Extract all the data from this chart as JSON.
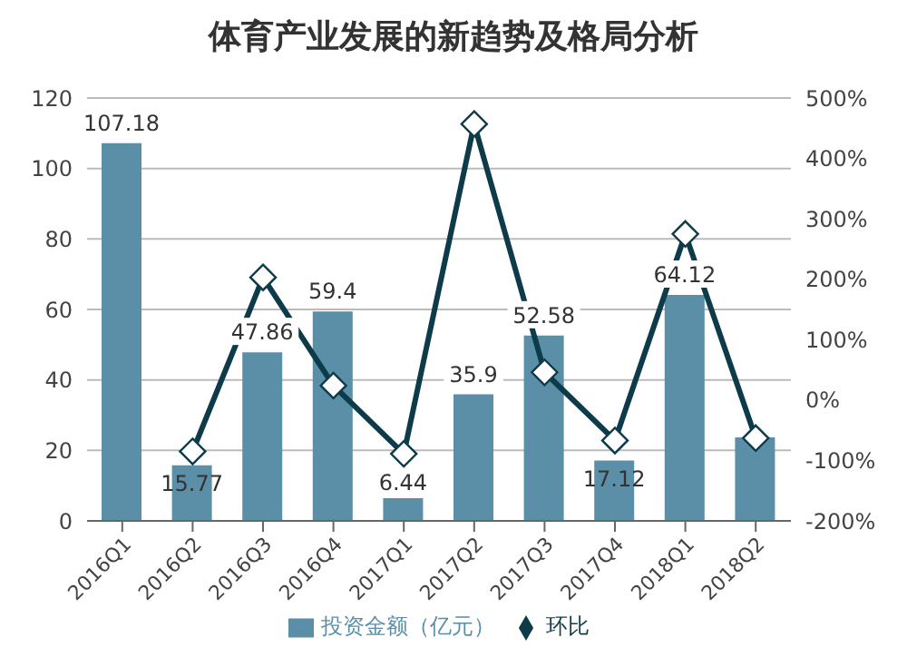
{
  "chart_data": {
    "type": "bar",
    "title": "体育产业发展的新趋势及格局分析",
    "categories": [
      "2016Q1",
      "2016Q2",
      "2016Q3",
      "2016Q4",
      "2017Q1",
      "2017Q2",
      "2017Q3",
      "2017Q4",
      "2018Q1",
      "2018Q2"
    ],
    "series": [
      {
        "name": "投资金额（亿元）",
        "type": "bar",
        "color": "#5b8fa8",
        "values": [
          107.18,
          15.77,
          47.86,
          59.4,
          6.44,
          35.9,
          52.58,
          17.12,
          64.12,
          23.7
        ],
        "value_labels": [
          "107.18",
          "15.77",
          "47.86",
          "59.4",
          "6.44",
          "35.9",
          "52.58",
          "17.12",
          "64.12",
          null
        ]
      },
      {
        "name": "环比",
        "type": "line",
        "axis": "y2",
        "color": "#0d3b4a",
        "marker": "diamond",
        "values": [
          null,
          -85,
          203,
          24,
          -89,
          457,
          46,
          -67,
          275,
          -63
        ]
      }
    ],
    "ylim": [
      0,
      120
    ],
    "yticks": [
      0,
      20,
      40,
      60,
      80,
      100,
      120
    ],
    "y2lim": [
      -200,
      500
    ],
    "y2ticks": [
      {
        "value": -200,
        "label": "-200%"
      },
      {
        "value": -100,
        "label": "-100%"
      },
      {
        "value": 0,
        "label": "0%"
      },
      {
        "value": 100,
        "label": "100%"
      },
      {
        "value": 200,
        "label": "200%"
      },
      {
        "value": 300,
        "label": "300%"
      },
      {
        "value": 400,
        "label": "400%"
      },
      {
        "value": 500,
        "label": "500%"
      }
    ],
    "grid": "y",
    "legend": "bottom"
  }
}
